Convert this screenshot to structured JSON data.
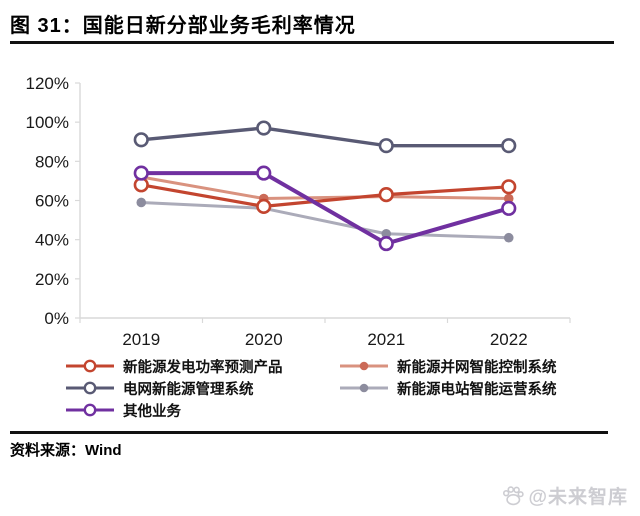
{
  "header": {
    "title": "图 31：国能日新分部业务毛利率情况"
  },
  "footer": {
    "source_label": "资料来源：Wind",
    "watermark_text": "@未来智库",
    "watermark_icon": "paw-icon"
  },
  "chart_data": {
    "type": "line",
    "title": "国能日新分部业务毛利率情况",
    "categories": [
      "2019",
      "2020",
      "2021",
      "2022"
    ],
    "series": [
      {
        "name": "新能源发电功率预测产品",
        "color": "#C3452F",
        "marker": "open-circle",
        "line_width": 3.2,
        "values": [
          68,
          57,
          63,
          67
        ]
      },
      {
        "name": "新能源并网智能控制系统",
        "color": "#D9927F",
        "marker": "dot",
        "marker_color": "#CB6A57",
        "line_width": 3,
        "values": [
          72,
          61,
          62,
          61
        ]
      },
      {
        "name": "电网新能源管理系统",
        "color": "#595A74",
        "marker": "open-circle",
        "line_width": 3.4,
        "values": [
          91,
          97,
          88,
          88
        ]
      },
      {
        "name": "新能源电站智能运营系统",
        "color": "#ABABB9",
        "marker": "dot",
        "marker_color": "#8C8C9E",
        "line_width": 3,
        "values": [
          59,
          56,
          43,
          41
        ]
      },
      {
        "name": "其他业务",
        "color": "#7030A0",
        "marker": "open-circle",
        "line_width": 4,
        "values": [
          74,
          74,
          38,
          56
        ]
      }
    ],
    "draw_order": [
      2,
      3,
      1,
      0,
      4
    ],
    "ylim": [
      0,
      120
    ],
    "ytick_step": 20,
    "ytick_suffix": "%",
    "ytick_labels": [
      "0%",
      "20%",
      "40%",
      "60%",
      "80%",
      "100%",
      "120%"
    ],
    "grid": false,
    "legend_position": "bottom",
    "axis_color": "#D9D9D9",
    "label_color": "#1A1A1A"
  }
}
